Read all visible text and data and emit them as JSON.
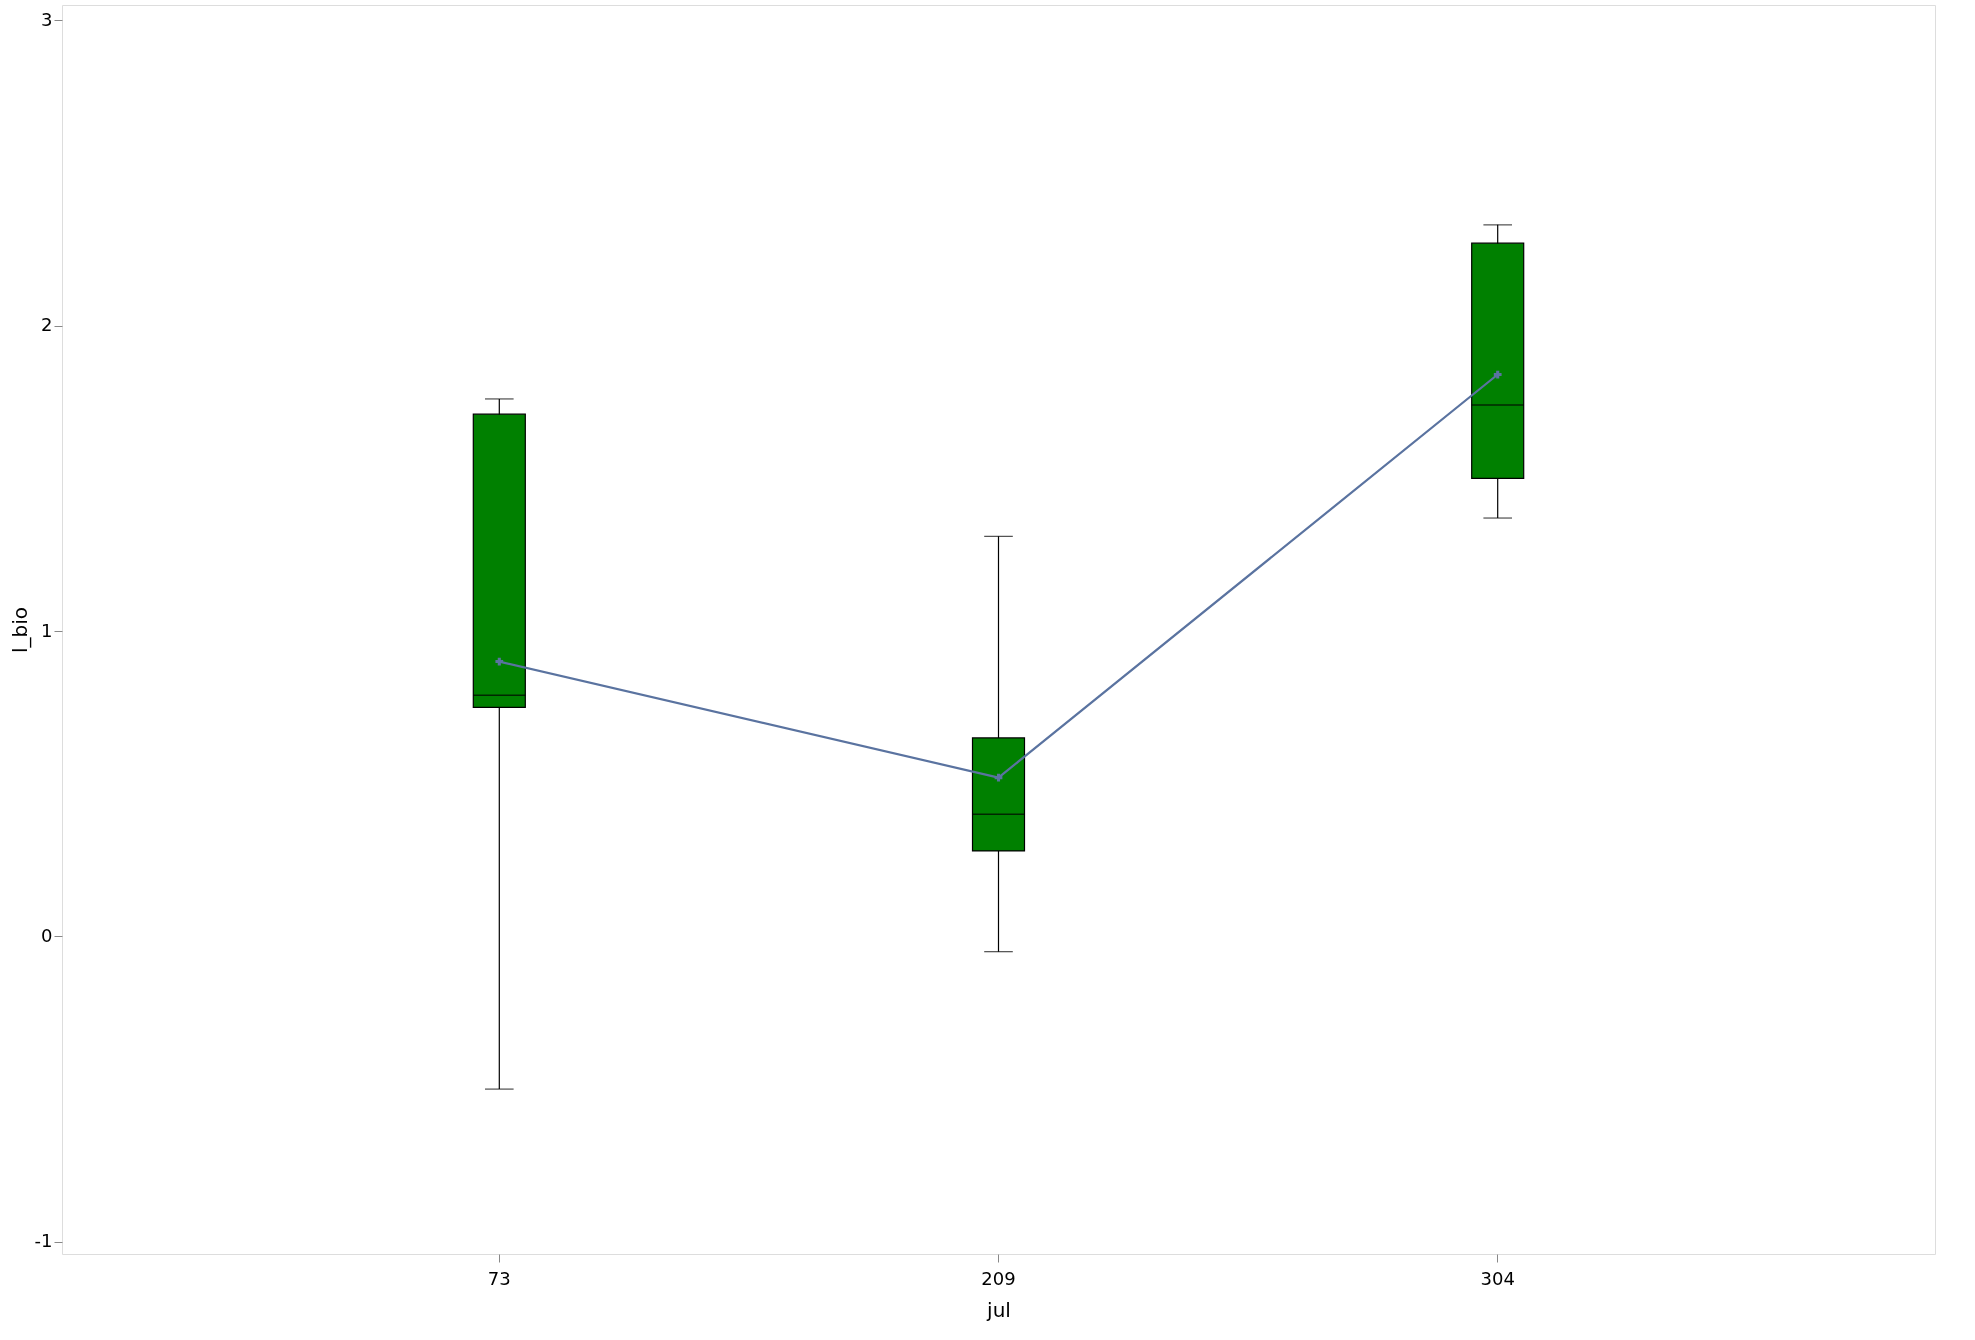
{
  "chart_data": {
    "type": "box",
    "xlabel": "jul",
    "ylabel": "l_bio",
    "categories": [
      "73",
      "209",
      "304"
    ],
    "color": "#008000",
    "boxes": [
      {
        "low": -0.5,
        "q1": 0.75,
        "median": 0.79,
        "q3": 1.71,
        "high": 1.76
      },
      {
        "low": -0.05,
        "q1": 0.28,
        "median": 0.4,
        "q3": 0.65,
        "high": 1.31
      },
      {
        "low": 1.37,
        "q1": 1.5,
        "median": 1.74,
        "q3": 2.27,
        "high": 2.33
      }
    ],
    "series": [
      {
        "type": "line",
        "color": "#5a73a0",
        "marker": "cross",
        "values": [
          0.9,
          0.52,
          1.84
        ]
      }
    ],
    "ylim": [
      -1.04,
      3.05
    ],
    "yticks": [
      -1,
      0,
      1,
      2,
      3
    ],
    "grid": false
  }
}
